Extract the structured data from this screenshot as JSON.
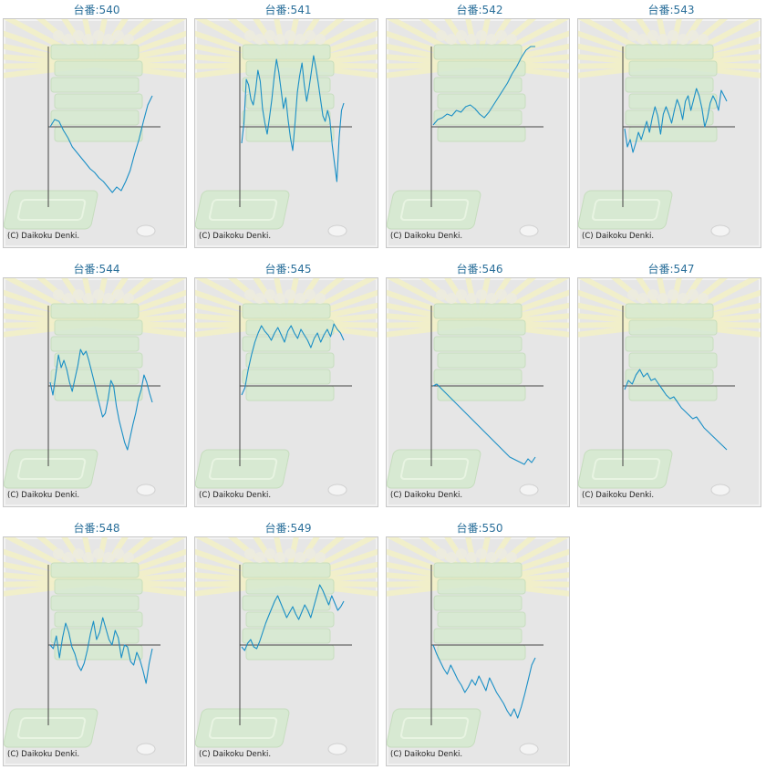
{
  "machine_label_prefix": "台番:",
  "copyright": "(C) Daikoku Denki.",
  "line_color": "#1a8fc6",
  "chart_data": [
    {
      "type": "line",
      "title": "台番:540",
      "y": [
        0,
        8,
        6,
        -4,
        -12,
        -22,
        -28,
        -34,
        -40,
        -46,
        -50,
        -56,
        -60,
        -66,
        -72,
        -66,
        -70,
        -60,
        -48,
        -30,
        -14,
        6,
        24,
        34
      ]
    },
    {
      "type": "line",
      "title": "台番:541",
      "y": [
        -18,
        4,
        52,
        46,
        30,
        24,
        40,
        62,
        50,
        20,
        4,
        -8,
        10,
        30,
        54,
        74,
        60,
        40,
        20,
        32,
        8,
        -12,
        -26,
        4,
        38,
        56,
        70,
        46,
        28,
        42,
        60,
        78,
        64,
        48,
        30,
        12,
        6,
        18,
        8,
        -20,
        -40,
        -60,
        -12,
        18,
        26
      ]
    },
    {
      "type": "line",
      "title": "台番:542",
      "y": [
        2,
        8,
        10,
        14,
        12,
        18,
        16,
        22,
        24,
        20,
        14,
        10,
        16,
        24,
        32,
        40,
        48,
        58,
        66,
        76,
        84,
        92,
        100
      ]
    },
    {
      "type": "line",
      "title": "台番:543",
      "y": [
        -2,
        -22,
        -14,
        -28,
        -18,
        -6,
        -14,
        -4,
        6,
        -6,
        10,
        22,
        12,
        -8,
        14,
        22,
        14,
        4,
        18,
        30,
        22,
        8,
        28,
        34,
        18,
        30,
        42,
        34,
        20,
        0,
        10,
        26,
        34,
        28,
        18,
        40,
        34,
        28
      ]
    },
    {
      "type": "line",
      "title": "台番:544",
      "y": [
        4,
        -10,
        12,
        34,
        20,
        28,
        18,
        4,
        -6,
        8,
        22,
        40,
        34,
        38,
        28,
        16,
        4,
        -10,
        -22,
        -34,
        -30,
        -14,
        6,
        0,
        -22,
        -38,
        -50,
        -62,
        -70,
        -56,
        -42,
        -30,
        -14,
        -4,
        12,
        4,
        -8,
        -18
      ]
    },
    {
      "type": "line",
      "title": "台番:545",
      "y": [
        -10,
        -2,
        18,
        34,
        48,
        58,
        66,
        60,
        56,
        50,
        58,
        64,
        56,
        48,
        60,
        66,
        58,
        52,
        62,
        56,
        50,
        42,
        52,
        58,
        48,
        56,
        62,
        54,
        68,
        62,
        58,
        50
      ]
    },
    {
      "type": "line",
      "title": "台番:546",
      "y": [
        0,
        2,
        -2,
        -6,
        -10,
        -14,
        -18,
        -22,
        -26,
        -30,
        -34,
        -38,
        -42,
        -46,
        -50,
        -54,
        -58,
        -62,
        -66,
        -70,
        -74,
        -78,
        -80,
        -82,
        -84,
        -86,
        -80,
        -84,
        -78
      ]
    },
    {
      "type": "line",
      "title": "台番:547",
      "y": [
        -4,
        6,
        2,
        12,
        18,
        10,
        14,
        6,
        8,
        2,
        -4,
        -10,
        -14,
        -12,
        -18,
        -24,
        -28,
        -32,
        -36,
        -34,
        -40,
        -46,
        -50,
        -54,
        -58,
        -62,
        -66,
        -70
      ]
    },
    {
      "type": "line",
      "title": "台番:548",
      "y": [
        0,
        -4,
        10,
        -14,
        8,
        24,
        14,
        -2,
        -10,
        -22,
        -28,
        -20,
        -6,
        12,
        26,
        6,
        14,
        30,
        18,
        6,
        0,
        16,
        8,
        -14,
        0,
        -2,
        -18,
        -22,
        -8,
        -16,
        -28,
        -42,
        -20,
        -4
      ]
    },
    {
      "type": "line",
      "title": "台番:549",
      "y": [
        -2,
        -6,
        2,
        6,
        -2,
        -4,
        4,
        14,
        24,
        32,
        40,
        48,
        54,
        46,
        38,
        30,
        36,
        42,
        34,
        28,
        36,
        44,
        38,
        30,
        42,
        54,
        66,
        60,
        52,
        44,
        54,
        46,
        38,
        42,
        48
      ]
    },
    {
      "type": "line",
      "title": "台番:550",
      "y": [
        0,
        -10,
        -18,
        -26,
        -32,
        -22,
        -30,
        -38,
        -44,
        -52,
        -46,
        -38,
        -44,
        -34,
        -42,
        -50,
        -36,
        -44,
        -52,
        -58,
        -64,
        -72,
        -78,
        -70,
        -80,
        -68,
        -54,
        -38,
        -22,
        -14
      ]
    }
  ]
}
